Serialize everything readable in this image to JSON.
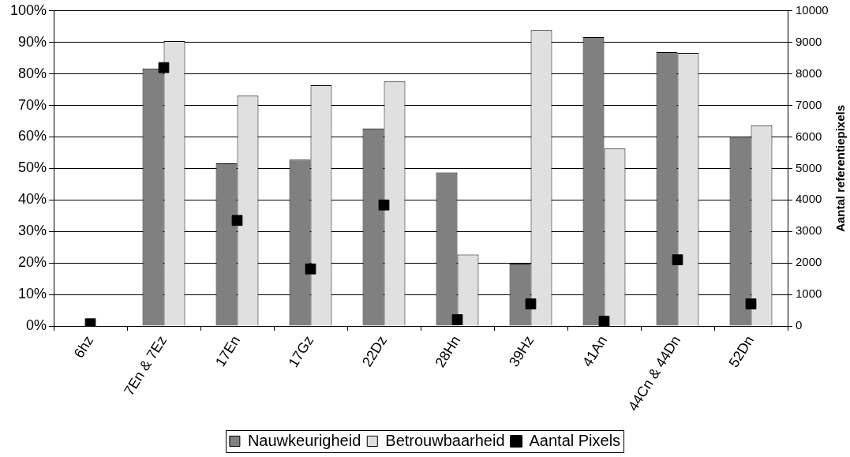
{
  "chart_data": {
    "type": "bar",
    "categories": [
      "6hz",
      "7En & 7Ez",
      "17En",
      "17Gz",
      "22Dz",
      "28Hn",
      "39Hz",
      "41An",
      "44Cn & 44Dn",
      "52Dn"
    ],
    "series": [
      {
        "name": "Nauwkeurigheid",
        "color": "#808080",
        "values": [
          null,
          81.7,
          51.6,
          52.8,
          62.7,
          48.7,
          19.8,
          91.7,
          86.9,
          60.2
        ]
      },
      {
        "name": "Betrouwbaarheid",
        "color": "#e0e0e0",
        "values": [
          null,
          90.4,
          73.1,
          76.4,
          77.6,
          22.7,
          93.9,
          56.3,
          86.7,
          63.7
        ]
      },
      {
        "name": "Aantal Pixels",
        "type": "scatter",
        "axis": "y2",
        "color": "#000000",
        "marker": "square",
        "x": [
          "6hz",
          "7En & 7Ez",
          "17En",
          "17Gz",
          "22Dz",
          "28Hn",
          "39Hz",
          "41An",
          "44Cn & 44Dn",
          "52Dn"
        ],
        "values": [
          70,
          8200,
          3350,
          1810,
          3840,
          200,
          700,
          150,
          2100,
          700
        ]
      }
    ],
    "y2label": "Aantal referentiepixels",
    "ylim": [
      0,
      100
    ],
    "yticks": [
      {
        "value": 0,
        "label": "0%"
      },
      {
        "value": 10,
        "label": "10%"
      },
      {
        "value": 20,
        "label": "20%"
      },
      {
        "value": 30,
        "label": "30%"
      },
      {
        "value": 40,
        "label": "40%"
      },
      {
        "value": 50,
        "label": "50%"
      },
      {
        "value": 60,
        "label": "60%"
      },
      {
        "value": 70,
        "label": "70%"
      },
      {
        "value": 80,
        "label": "80%"
      },
      {
        "value": 90,
        "label": "90%"
      },
      {
        "value": 100,
        "label": "100%"
      }
    ],
    "y2lim": [
      0,
      10000
    ],
    "y2ticks": [
      0,
      1000,
      2000,
      3000,
      4000,
      5000,
      6000,
      7000,
      8000,
      9000,
      10000
    ],
    "grid": "y",
    "legend": "bottom"
  }
}
